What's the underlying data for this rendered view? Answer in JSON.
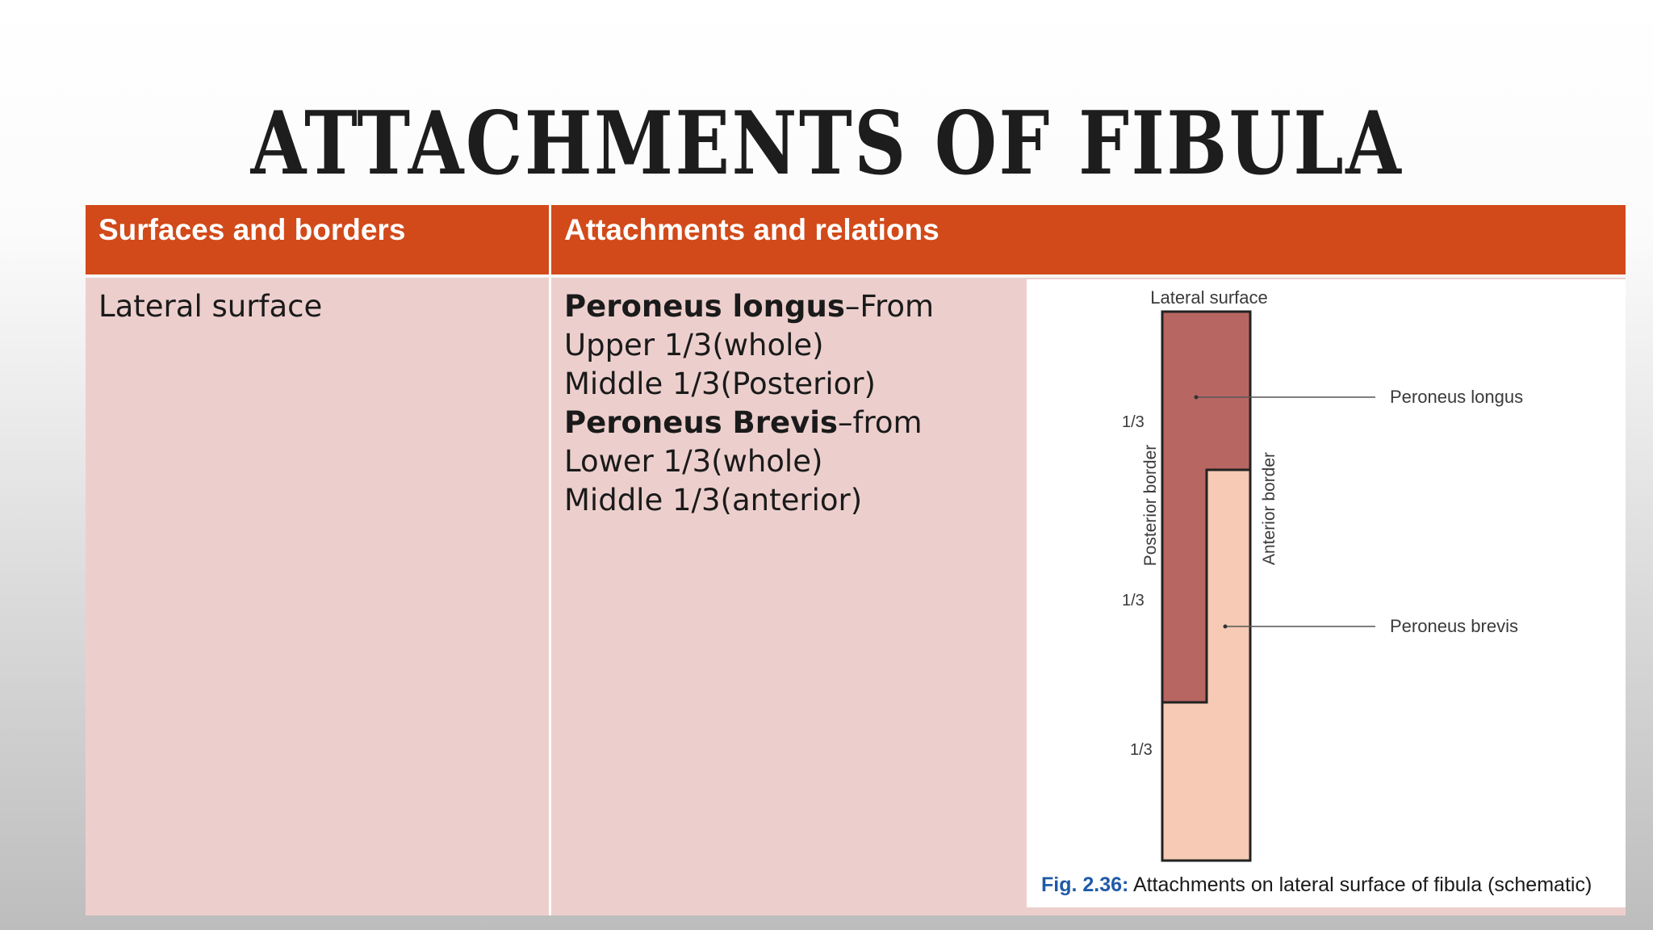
{
  "slide": {
    "title": "ATTACHMENTS OF FIBULA"
  },
  "table": {
    "headers": [
      "Surfaces and borders",
      "Attachments and relations"
    ],
    "row": {
      "surface": "Lateral surface",
      "lines": [
        {
          "bold": "Peroneus longus",
          "text": "–From"
        },
        {
          "bold": "",
          "text": "Upper 1/3(whole)"
        },
        {
          "bold": "",
          "text": "Middle 1/3(Posterior)"
        },
        {
          "bold": "Peroneus Brevis",
          "text": "–from"
        },
        {
          "bold": "",
          "text": "Lower 1/3(whole)"
        },
        {
          "bold": "",
          "text": "Middle 1/3(anterior)"
        }
      ]
    }
  },
  "figure": {
    "top_label": "Lateral surface",
    "posterior_border": "Posterior border",
    "anterior_border": "Anterior border",
    "thirds": [
      "1/3",
      "1/3",
      "1/3"
    ],
    "label_longus": "Peroneus longus",
    "label_brevis": "Peroneus brevis",
    "caption_fig": "Fig. 2.36:",
    "caption_text": "Attachments on lateral surface of fibula (schematic)",
    "colors": {
      "longus": "#b86662",
      "brevis": "#f6cab4"
    }
  }
}
